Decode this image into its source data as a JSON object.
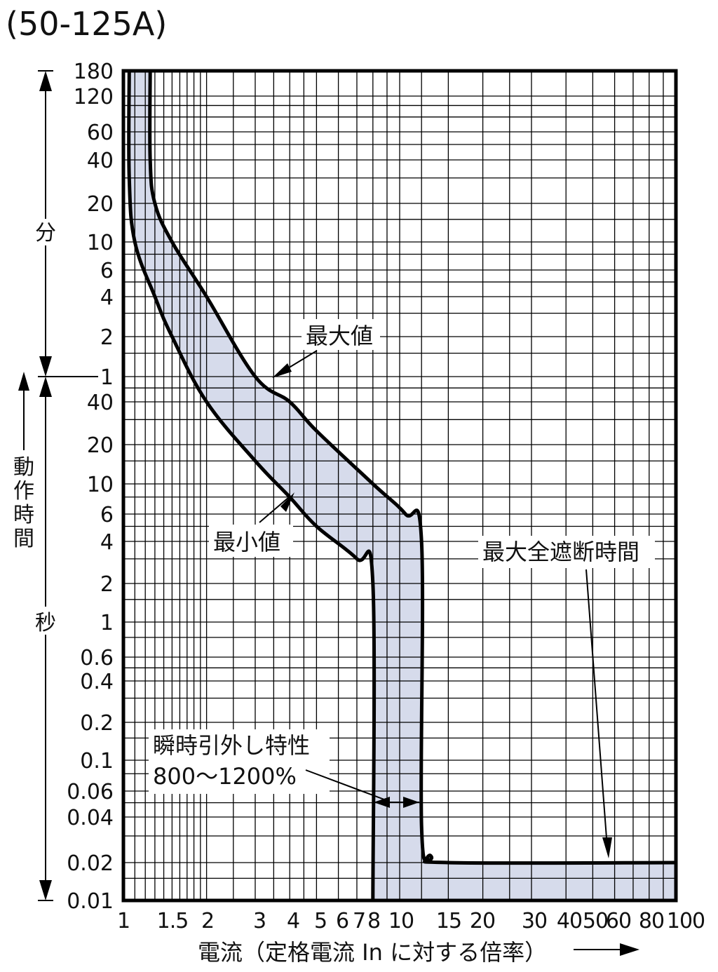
{
  "chart_data": {
    "type": "line",
    "title": "(50-125A)",
    "xlabel": "電流（定格電流 In に対する倍率）",
    "x_scale": "log",
    "xlim": [
      1,
      100
    ],
    "x_tick_labels": [
      "1",
      "1.5",
      "2",
      "3",
      "4",
      "5",
      "6",
      "7",
      "8",
      "10",
      "15",
      "20",
      "30",
      "40",
      "50",
      "60",
      "80",
      "100"
    ],
    "y_scale": "log",
    "y_unit_minutes_label": "分",
    "y_unit_seconds_label": "秒",
    "y_axis_label": "動作時間",
    "y_tick_labels_minutes": [
      "180",
      "120",
      "60",
      "40",
      "20",
      "10",
      "6",
      "4",
      "2",
      "1"
    ],
    "y_tick_labels_seconds": [
      "40",
      "20",
      "10",
      "6",
      "4",
      "2",
      "1",
      "0.6",
      "0.4",
      "0.2",
      "0.1",
      "0.06",
      "0.04",
      "0.02",
      "0.01"
    ],
    "grid": true,
    "band_fill_color": "#d6dbeb",
    "series": [
      {
        "name": "最大値",
        "points": [
          {
            "x": 1.25,
            "time_s": 10800
          },
          {
            "x": 1.25,
            "time_s": 2400
          },
          {
            "x": 1.3,
            "time_s": 1200
          },
          {
            "x": 1.5,
            "time_s": 600
          },
          {
            "x": 2.0,
            "time_s": 240
          },
          {
            "x": 3.0,
            "time_s": 60
          },
          {
            "x": 4.0,
            "time_s": 40
          },
          {
            "x": 5.0,
            "time_s": 25
          },
          {
            "x": 8.0,
            "time_s": 10
          },
          {
            "x": 10.5,
            "time_s": 6
          },
          {
            "x": 12.0,
            "time_s": 4
          },
          {
            "x": 12.0,
            "time_s": 0.035
          },
          {
            "x": 13.0,
            "time_s": 0.022
          },
          {
            "x": 15.0,
            "time_s": 0.02
          },
          {
            "x": 100,
            "time_s": 0.02
          }
        ]
      },
      {
        "name": "最小値",
        "points": [
          {
            "x": 1.05,
            "time_s": 10800
          },
          {
            "x": 1.05,
            "time_s": 1800
          },
          {
            "x": 1.1,
            "time_s": 600
          },
          {
            "x": 1.3,
            "time_s": 240
          },
          {
            "x": 1.5,
            "time_s": 120
          },
          {
            "x": 2.0,
            "time_s": 40
          },
          {
            "x": 3.0,
            "time_s": 15
          },
          {
            "x": 4.0,
            "time_s": 8
          },
          {
            "x": 5.0,
            "time_s": 5
          },
          {
            "x": 7.0,
            "time_s": 3
          },
          {
            "x": 8.0,
            "time_s": 2
          },
          {
            "x": 8.0,
            "time_s": 0.01
          }
        ]
      }
    ],
    "annotations": {
      "max_label": "最大値",
      "min_label": "最小値",
      "total_interrupt_label": "最大全遮断時間",
      "instant_label_1": "瞬時引外し特性",
      "instant_label_2": "800〜1200%"
    }
  }
}
